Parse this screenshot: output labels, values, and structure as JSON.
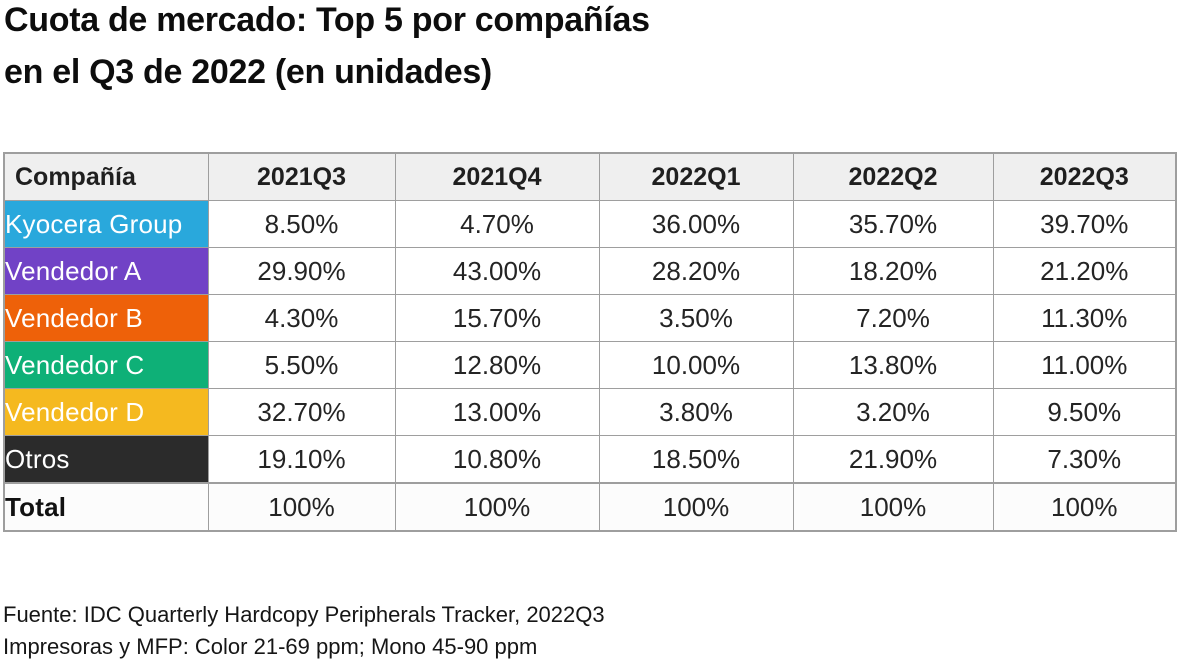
{
  "title": {
    "line1": "Cuota de mercado: Top 5 por compañías",
    "line2": "en el Q3 de 2022 (en unidades)"
  },
  "table": {
    "columns": [
      "Compañía",
      "2021Q3",
      "2021Q4",
      "2022Q1",
      "2022Q2",
      "2022Q3"
    ],
    "rows": [
      {
        "label": "Kyocera Group",
        "color": "#29A8DC",
        "text_color": "#FFFFFF",
        "values": [
          "8.50%",
          "4.70%",
          "36.00%",
          "35.70%",
          "39.70%"
        ]
      },
      {
        "label": "Vendedor A",
        "color": "#7142C6",
        "text_color": "#FFFFFF",
        "values": [
          "29.90%",
          "43.00%",
          "28.20%",
          "18.20%",
          "21.20%"
        ]
      },
      {
        "label": "Vendedor B",
        "color": "#EE6109",
        "text_color": "#FFFFFF",
        "values": [
          "4.30%",
          "15.70%",
          "3.50%",
          "7.20%",
          "11.30%"
        ]
      },
      {
        "label": "Vendedor C",
        "color": "#0EB077",
        "text_color": "#FFFFFF",
        "values": [
          "5.50%",
          "12.80%",
          "10.00%",
          "13.80%",
          "11.00%"
        ]
      },
      {
        "label": "Vendedor D",
        "color": "#F5B91F",
        "text_color": "#FFFFFF",
        "values": [
          "32.70%",
          "13.00%",
          "3.80%",
          "3.20%",
          "9.50%"
        ]
      },
      {
        "label": "Otros",
        "color": "#2B2B2B",
        "text_color": "#FFFFFF",
        "values": [
          "19.10%",
          "10.80%",
          "18.50%",
          "21.90%",
          "7.30%"
        ]
      }
    ],
    "total_row": {
      "label": "Total",
      "values": [
        "100%",
        "100%",
        "100%",
        "100%",
        "100%"
      ]
    }
  },
  "footer": {
    "line1": "Fuente: IDC Quarterly Hardcopy Peripherals Tracker, 2022Q3",
    "line2": "Impresoras y MFP: Color 21-69 ppm; Mono 45-90 ppm"
  },
  "colors": {
    "header_bg": "#EFEFEF",
    "border": "#9E9E9E",
    "kyocera_cyan": "#29A8DC",
    "vendor_a_purple": "#7142C6",
    "vendor_b_orange": "#EE6109",
    "vendor_c_green": "#0EB077",
    "vendor_d_yellow": "#F5B91F",
    "otros_dark": "#2B2B2B"
  },
  "chart_data": {
    "type": "table",
    "title": "Cuota de mercado: Top 5 por compañías en el Q3 de 2022 (en unidades)",
    "categories": [
      "2021Q3",
      "2021Q4",
      "2022Q1",
      "2022Q2",
      "2022Q3"
    ],
    "series": [
      {
        "name": "Kyocera Group",
        "values": [
          8.5,
          4.7,
          36.0,
          35.7,
          39.7
        ]
      },
      {
        "name": "Vendedor A",
        "values": [
          29.9,
          43.0,
          28.2,
          18.2,
          21.2
        ]
      },
      {
        "name": "Vendedor B",
        "values": [
          4.3,
          15.7,
          3.5,
          7.2,
          11.3
        ]
      },
      {
        "name": "Vendedor C",
        "values": [
          5.5,
          12.8,
          10.0,
          13.8,
          11.0
        ]
      },
      {
        "name": "Vendedor D",
        "values": [
          32.7,
          13.0,
          3.8,
          3.2,
          9.5
        ]
      },
      {
        "name": "Otros",
        "values": [
          19.1,
          10.8,
          18.5,
          21.9,
          7.3
        ]
      },
      {
        "name": "Total",
        "values": [
          100,
          100,
          100,
          100,
          100
        ]
      }
    ],
    "unit": "%",
    "source": "Fuente: IDC Quarterly Hardcopy Peripherals Tracker, 2022Q3",
    "note": "Impresoras y MFP: Color 21-69 ppm; Mono 45-90 ppm"
  }
}
